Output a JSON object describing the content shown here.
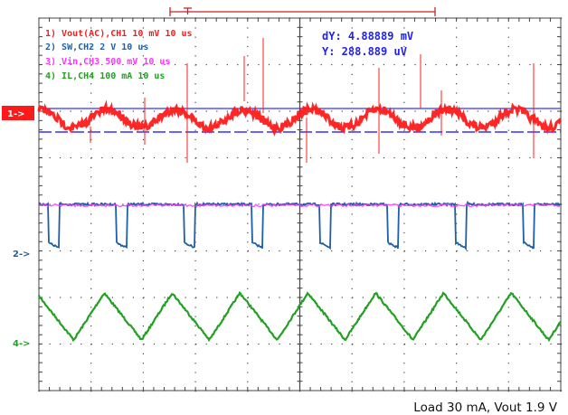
{
  "chart_data": {
    "type": "line",
    "title": "",
    "caption": "Load 30 mA, Vout 1.9 V",
    "grid": true,
    "x_divisions": 10,
    "y_divisions": 8,
    "time_per_div": "10 us",
    "cursor_readout": {
      "dY": "dY: 4.88889 mV",
      "Y": "Y: 288.889 uV"
    },
    "channels": [
      {
        "id": 1,
        "label": "1) Vout(AC),CH1  10 mV   10 us",
        "color": "#ff1a1a",
        "marker": "1->",
        "waveform": "ripple",
        "volts_per_div": "10 mV"
      },
      {
        "id": 2,
        "label": "2) SW,CH2  2  V    10 us",
        "color": "#1f5fa8",
        "marker": "2->",
        "waveform": "switch",
        "volts_per_div": "2 V"
      },
      {
        "id": 3,
        "label": "3) Vin,CH3  500 mV   10 us",
        "color": "#ff33ff",
        "marker": "",
        "waveform": "flat",
        "volts_per_div": "500 mV"
      },
      {
        "id": 4,
        "label": "4) IL,CH4  100 mA   10 us",
        "color": "#22a022",
        "marker": "4->",
        "waveform": "triangle",
        "volts_per_div": "100 mA"
      }
    ],
    "switching_period_div": 1.3
  },
  "colors": {
    "grid": "#444444",
    "cursor": "#3333ff",
    "cursor_text": "#2222ee",
    "trigger_bracket": "#cc2222"
  }
}
